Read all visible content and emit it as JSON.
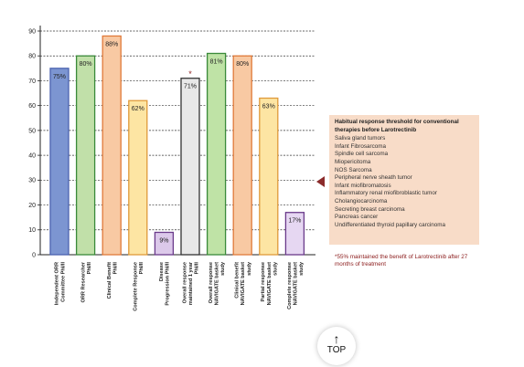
{
  "chart_data": {
    "type": "bar",
    "categories": [
      "Independent ORR Committee PhI/II",
      "ORR Researcher PhI/II",
      "Clinical Benefit PhI/II",
      "Complete Response PhI/II",
      "Disease Progression PhI/II",
      "Overall response maintained 1 year PhI/II",
      "Overall response NAVIGATE basket study",
      "Clinical benefit NAVIGATE basket study",
      "Partial response NAVIGATE basket study",
      "Complete response NAVIGATE basket study"
    ],
    "values": [
      75,
      80,
      88,
      62,
      9,
      71,
      81,
      80,
      63,
      17
    ],
    "data_labels": [
      "75%",
      "80%",
      "88%",
      "62%",
      "9%",
      "71%",
      "81%",
      "80%",
      "63%",
      "17%"
    ],
    "bar_colors": [
      "#7c95d1",
      "#c1e0a9",
      "#f8c9a3",
      "#fde5a3",
      "#dcc9ea",
      "#e8e8e8",
      "#bfe3a6",
      "#f8c9a3",
      "#fde5a3",
      "#e6d7f2"
    ],
    "bar_edges": [
      "#4a62b0",
      "#3a8a3a",
      "#e07a3a",
      "#e09a3a",
      "#6a3a8a",
      "#333333",
      "#3a8a3a",
      "#e07a3a",
      "#e09a3a",
      "#6a3a8a"
    ],
    "asterisk_label": "*",
    "asterisk_index": 5,
    "yticks": [
      0,
      10,
      20,
      30,
      40,
      50,
      60,
      70,
      80,
      90
    ],
    "ylim": [
      0,
      90
    ],
    "grid": "dashed horizontal",
    "xlabel": "",
    "ylabel": "",
    "title": ""
  },
  "info_box": {
    "title": "Habitual response threshold for conventional therapies before Larotrectinib",
    "items": [
      "Saliva gland tumors",
      "Infant Fibrosarcoma",
      "Spindle cell sarcoma",
      "Miopericitoma",
      "NOS Sarcoma",
      "Peripheral nerve sheath tumor",
      "Infant miofibromatosis",
      "Inflammatory renal miofibroblastic tumor",
      "Cholangiocarcinoma",
      "Secreting breast carcinoma",
      "Pancreas cancer",
      "Undifferentiated thyroid papillary carcinoma"
    ]
  },
  "footnote": "*55% maintained the benefit of Larotrectinib after 27 months of treatment",
  "top_button": {
    "arrow": "↑",
    "label": "TOP"
  }
}
